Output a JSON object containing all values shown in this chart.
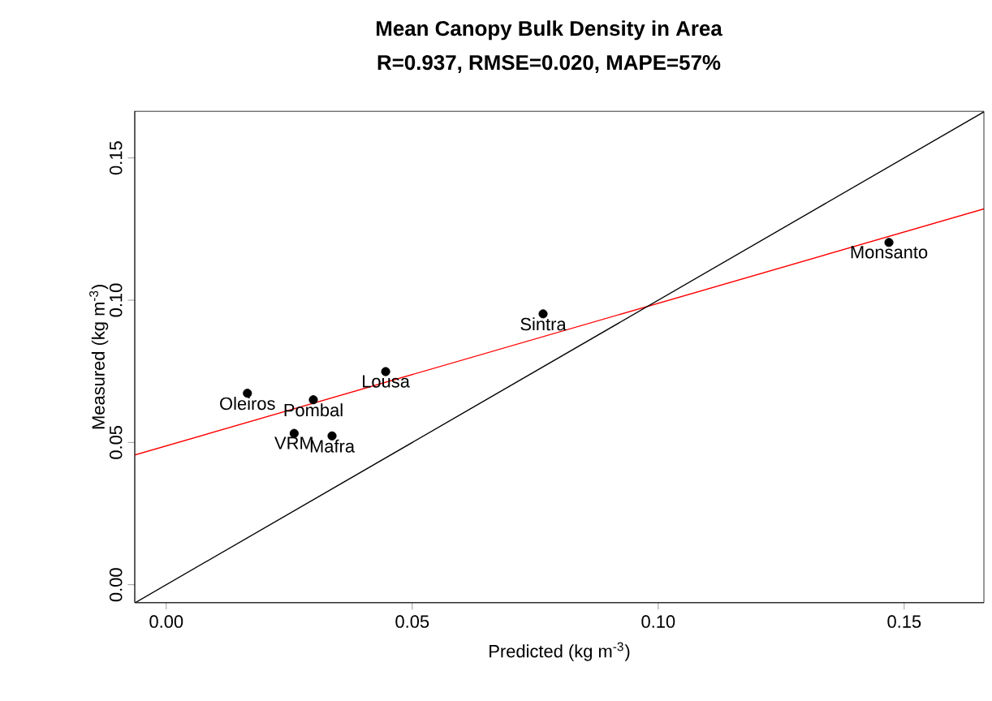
{
  "chart_data": {
    "type": "scatter",
    "title": "Mean Canopy Bulk Density in Area",
    "subtitle": "R=0.937,   RMSE=0.020,   MAPE=57%",
    "xlabel": "Predicted (kg m$^{-3}$)",
    "ylabel": "Measured (kg m$^{-3}$)",
    "xlim": [
      -0.0064,
      0.1662
    ],
    "ylim": [
      -0.0063,
      0.1665
    ],
    "xticks": [
      {
        "value": 0,
        "label": "0.00"
      },
      0.05,
      {
        "value": 0.1,
        "label": "0.10"
      },
      0.15
    ],
    "yticks": [
      {
        "value": 0,
        "label": "0.00"
      },
      0.05,
      {
        "value": 0.1,
        "label": "0.10"
      },
      0.15
    ],
    "marker": "circle",
    "series": [
      {
        "color": "#000000",
        "x": [
          0.0165,
          0.0299,
          0.026,
          0.0337,
          0.0446,
          0.0766,
          0.1469
        ],
        "values": [
          0.0673,
          0.065,
          0.0532,
          0.0523,
          0.0749,
          0.0952,
          0.1203
        ]
      },
      {
        "type": "line",
        "color": "#ff0000",
        "marker": "none",
        "line_style": "solid",
        "x": [
          -0.0064,
          0.1662
        ],
        "values": [
          0.0456,
          0.1321
        ]
      },
      {
        "type": "line",
        "color": "#000000",
        "marker": "none",
        "line_style": "solid",
        "x": [
          -0.0063,
          0.1662
        ],
        "values": [
          -0.0063,
          0.1662
        ]
      }
    ],
    "annotations": [
      {
        "text": "Oleiros",
        "x": 0.0165,
        "y": 0.0673
      },
      {
        "text": "Pombal",
        "x": 0.0299,
        "y": 0.065
      },
      {
        "text": "VRM",
        "x": 0.026,
        "y": 0.0532
      },
      {
        "text": "Mafra",
        "x": 0.0337,
        "y": 0.0523
      },
      {
        "text": "Lousa",
        "x": 0.0446,
        "y": 0.0749
      },
      {
        "text": "Sintra",
        "x": 0.0766,
        "y": 0.0952
      },
      {
        "text": "Monsanto",
        "x": 0.1469,
        "y": 0.1203
      }
    ]
  }
}
